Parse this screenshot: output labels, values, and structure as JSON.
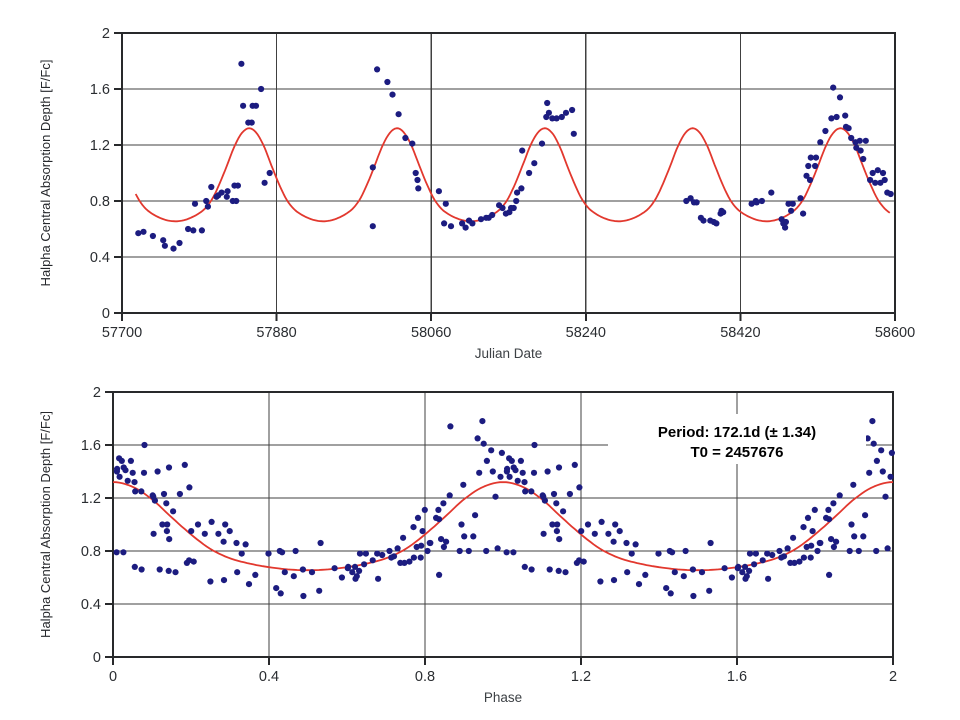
{
  "figure": {
    "background": "#ffffff",
    "description": "Two stacked scatter plots of Halpha central absorption depth: raw time series vs Julian Date (top) and phase-folded curve (bottom) with periodic fit."
  },
  "chart_data": [
    {
      "type": "scatter",
      "title": "",
      "xlabel": "Julian Date",
      "ylabel": "Halpha Central Absorption Depth [F/Fc]",
      "xlim": [
        57700,
        58600
      ],
      "ylim": [
        0,
        2
      ],
      "xticks": [
        57700,
        57880,
        58060,
        58240,
        58420,
        58600
      ],
      "xtick_labels": [
        "57700",
        "57880",
        "58060",
        "58240",
        "58420",
        "58600"
      ],
      "yticks": [
        0,
        0.4,
        0.8,
        1.2,
        1.6,
        2
      ],
      "ytick_labels": [
        "0",
        "0.4",
        "0.8",
        "1.2",
        "1.6",
        "2"
      ],
      "grid": true,
      "point_color": "#1c1c80",
      "curve_color": "#e2382e",
      "points": [
        [
          57719,
          0.57
        ],
        [
          57725,
          0.58
        ],
        [
          57736,
          0.55
        ],
        [
          57748,
          0.52
        ],
        [
          57750,
          0.48
        ],
        [
          57760,
          0.46
        ],
        [
          57767,
          0.5
        ],
        [
          57777,
          0.6
        ],
        [
          57783,
          0.59
        ],
        [
          57785,
          0.78
        ],
        [
          57793,
          0.59
        ],
        [
          57798,
          0.8
        ],
        [
          57800,
          0.76
        ],
        [
          57804,
          0.9
        ],
        [
          57810,
          0.83
        ],
        [
          57812,
          0.84
        ],
        [
          57816,
          0.86
        ],
        [
          57822,
          0.83
        ],
        [
          57823,
          0.87
        ],
        [
          57829,
          0.8
        ],
        [
          57831,
          0.91
        ],
        [
          57833,
          0.8
        ],
        [
          57835,
          0.91
        ],
        [
          57839,
          1.78
        ],
        [
          57841,
          1.48
        ],
        [
          57847,
          1.36
        ],
        [
          57851,
          1.36
        ],
        [
          57852,
          1.48
        ],
        [
          57856,
          1.48
        ],
        [
          57862,
          1.6
        ],
        [
          57866,
          0.93
        ],
        [
          57872,
          1.0
        ],
        [
          57992,
          1.04
        ],
        [
          57992,
          0.62
        ],
        [
          57997,
          1.74
        ],
        [
          58009,
          1.65
        ],
        [
          58015,
          1.56
        ],
        [
          58022,
          1.42
        ],
        [
          58030,
          1.25
        ],
        [
          58038,
          1.21
        ],
        [
          58042,
          1.0
        ],
        [
          58044,
          0.95
        ],
        [
          58045,
          0.89
        ],
        [
          58069,
          0.87
        ],
        [
          58075,
          0.64
        ],
        [
          58077,
          0.78
        ],
        [
          58083,
          0.62
        ],
        [
          58096,
          0.64
        ],
        [
          58100,
          0.61
        ],
        [
          58104,
          0.66
        ],
        [
          58108,
          0.64
        ],
        [
          58118,
          0.67
        ],
        [
          58124,
          0.68
        ],
        [
          58127,
          0.68
        ],
        [
          58131,
          0.7
        ],
        [
          58139,
          0.77
        ],
        [
          58143,
          0.75
        ],
        [
          58147,
          0.71
        ],
        [
          58151,
          0.72
        ],
        [
          58153,
          0.75
        ],
        [
          58156,
          0.75
        ],
        [
          58159,
          0.8
        ],
        [
          58160,
          0.86
        ],
        [
          58165,
          0.89
        ],
        [
          58166,
          1.16
        ],
        [
          58174,
          1.0
        ],
        [
          58180,
          1.07
        ],
        [
          58189,
          1.21
        ],
        [
          58194,
          1.4
        ],
        [
          58195,
          1.5
        ],
        [
          58197,
          1.43
        ],
        [
          58201,
          1.39
        ],
        [
          58206,
          1.39
        ],
        [
          58212,
          1.4
        ],
        [
          58217,
          1.43
        ],
        [
          58224,
          1.45
        ],
        [
          58226,
          1.28
        ],
        [
          58357,
          0.8
        ],
        [
          58362,
          0.82
        ],
        [
          58366,
          0.79
        ],
        [
          58369,
          0.79
        ],
        [
          58374,
          0.68
        ],
        [
          58377,
          0.66
        ],
        [
          58385,
          0.66
        ],
        [
          58389,
          0.65
        ],
        [
          58392,
          0.64
        ],
        [
          58397,
          0.71
        ],
        [
          58398,
          0.73
        ],
        [
          58400,
          0.72
        ],
        [
          58433,
          0.78
        ],
        [
          58438,
          0.8
        ],
        [
          58439,
          0.79
        ],
        [
          58445,
          0.8
        ],
        [
          58456,
          0.86
        ],
        [
          58468,
          0.67
        ],
        [
          58470,
          0.64
        ],
        [
          58472,
          0.61
        ],
        [
          58473,
          0.65
        ],
        [
          58476,
          0.78
        ],
        [
          58479,
          0.73
        ],
        [
          58481,
          0.78
        ],
        [
          58490,
          0.82
        ],
        [
          58493,
          0.71
        ],
        [
          58497,
          0.98
        ],
        [
          58499,
          1.05
        ],
        [
          58501,
          0.95
        ],
        [
          58502,
          1.11
        ],
        [
          58507,
          1.05
        ],
        [
          58508,
          1.11
        ],
        [
          58513,
          1.22
        ],
        [
          58519,
          1.3
        ],
        [
          58526,
          1.39
        ],
        [
          58528,
          1.61
        ],
        [
          58532,
          1.4
        ],
        [
          58536,
          1.54
        ],
        [
          58542,
          1.41
        ],
        [
          58543,
          1.33
        ],
        [
          58546,
          1.32
        ],
        [
          58549,
          1.25
        ],
        [
          58554,
          1.22
        ],
        [
          58555,
          1.18
        ],
        [
          58559,
          1.23
        ],
        [
          58560,
          1.16
        ],
        [
          58563,
          1.1
        ],
        [
          58566,
          1.23
        ],
        [
          58571,
          0.95
        ],
        [
          58574,
          1.0
        ],
        [
          58577,
          0.93
        ],
        [
          58580,
          1.02
        ],
        [
          58583,
          0.93
        ],
        [
          58586,
          1.0
        ],
        [
          58588,
          0.95
        ],
        [
          58591,
          0.86
        ],
        [
          58595,
          0.85
        ]
      ],
      "fit_curve": {
        "period_days": 172.1,
        "period_error_days": 1.34,
        "t0_jd": 2457676,
        "t_start": 57716,
        "t_end": 58594,
        "max_depth": 1.32,
        "min_depth": 0.655,
        "profile_phase": [
          0,
          0.05,
          0.1,
          0.15,
          0.2,
          0.25,
          0.3,
          0.35,
          0.4,
          0.45,
          0.5,
          0.55,
          0.6,
          0.65,
          0.7,
          0.75,
          0.8,
          0.85,
          0.9,
          0.95
        ],
        "profile_depth": [
          1.32,
          1.285,
          1.19,
          1.055,
          0.925,
          0.815,
          0.745,
          0.705,
          0.678,
          0.661,
          0.655,
          0.661,
          0.678,
          0.705,
          0.745,
          0.815,
          0.925,
          1.055,
          1.19,
          1.285
        ]
      }
    },
    {
      "type": "scatter",
      "title": "",
      "xlabel": "Phase",
      "ylabel": "Halpha Central Absorption Depth [F/Fc]",
      "xlim": [
        0,
        2
      ],
      "ylim": [
        0,
        2
      ],
      "xticks": [
        0,
        0.4,
        0.8,
        1.2,
        1.6,
        2
      ],
      "xtick_labels": [
        "0",
        "0.4",
        "0.8",
        "1.2",
        "1.6",
        "2"
      ],
      "yticks": [
        0,
        0.4,
        0.8,
        1.2,
        1.6,
        2
      ],
      "ytick_labels": [
        "0",
        "0.4",
        "0.8",
        "1.2",
        "1.6",
        "2"
      ],
      "grid": true,
      "point_color": "#1c1c80",
      "curve_color": "#e2382e",
      "derived_from": "Phase fold of the Julian Date series using Period 172.1 d and T0 2457676; every point is plotted at phase and phase+1",
      "annotation": {
        "line1": "Period: 172.1d (± 1.34)",
        "line2": "T0 = 2457676"
      }
    }
  ]
}
